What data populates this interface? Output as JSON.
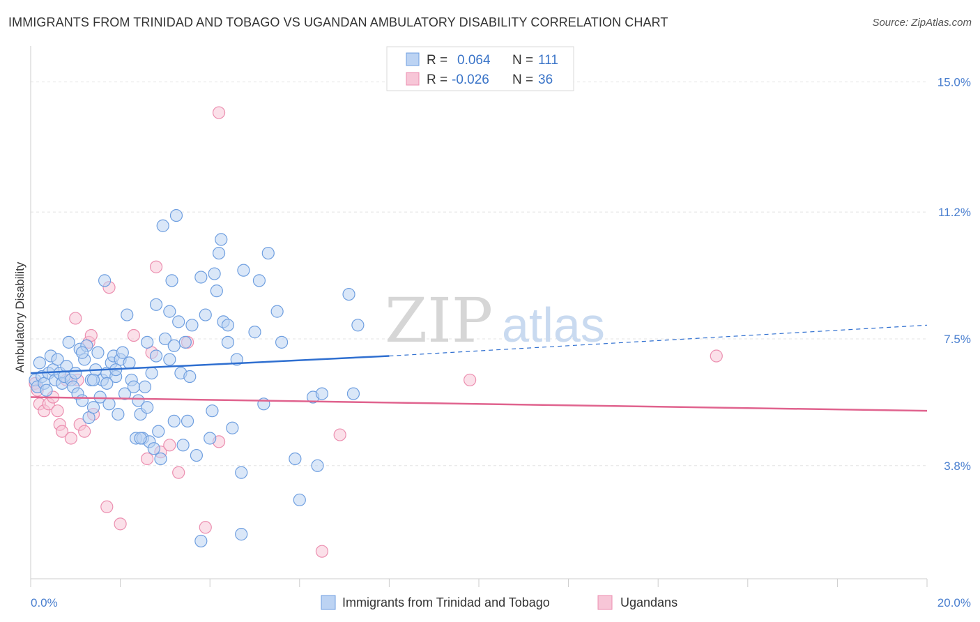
{
  "title": "IMMIGRANTS FROM TRINIDAD AND TOBAGO VS UGANDAN AMBULATORY DISABILITY CORRELATION CHART",
  "source": "Source: ZipAtlas.com",
  "watermark": {
    "zip": "ZIP",
    "atlas": "atlas"
  },
  "legend": {
    "r_label": "R =",
    "n_label": "N =",
    "rows": [
      {
        "r": "0.064",
        "n": "111"
      },
      {
        "r": "-0.026",
        "n": "36"
      }
    ]
  },
  "chart_data": {
    "type": "scatter",
    "title": "IMMIGRANTS FROM TRINIDAD AND TOBAGO VS UGANDAN AMBULATORY DISABILITY CORRELATION CHART",
    "xlabel": "",
    "ylabel": "Ambulatory Disability",
    "xlim": [
      0,
      20
    ],
    "ylim": [
      0.5,
      15.8
    ],
    "x_tick_labels": [
      "0.0%",
      "20.0%"
    ],
    "y_ticks": [
      3.8,
      7.5,
      11.2,
      15.0
    ],
    "y_tick_labels": [
      "3.8%",
      "7.5%",
      "11.2%",
      "15.0%"
    ],
    "grid": true,
    "legend_position": "top-center",
    "series": [
      {
        "name": "Immigrants from Trinidad and Tobago",
        "color": "#6f9fe0",
        "fill": "#bcd3f3",
        "trend": {
          "x0": 0,
          "y0": 6.5,
          "x1": 8.0,
          "y1": 7.0,
          "dash_x1": 20,
          "dash_y1": 7.9,
          "color": "#2f6fd0"
        },
        "points": [
          [
            0.1,
            6.3
          ],
          [
            0.15,
            6.1
          ],
          [
            0.2,
            6.8
          ],
          [
            0.25,
            6.4
          ],
          [
            0.3,
            6.2
          ],
          [
            0.35,
            6.0
          ],
          [
            0.4,
            6.5
          ],
          [
            0.45,
            7.0
          ],
          [
            0.5,
            6.6
          ],
          [
            0.55,
            6.3
          ],
          [
            0.6,
            6.9
          ],
          [
            0.65,
            6.5
          ],
          [
            0.7,
            6.2
          ],
          [
            0.75,
            6.4
          ],
          [
            0.8,
            6.7
          ],
          [
            0.85,
            7.4
          ],
          [
            0.9,
            6.3
          ],
          [
            0.95,
            6.1
          ],
          [
            1.0,
            6.5
          ],
          [
            1.05,
            5.9
          ],
          [
            1.1,
            7.2
          ],
          [
            1.15,
            5.7
          ],
          [
            1.2,
            6.9
          ],
          [
            1.25,
            7.3
          ],
          [
            1.3,
            5.2
          ],
          [
            1.35,
            6.3
          ],
          [
            1.4,
            5.5
          ],
          [
            1.45,
            6.6
          ],
          [
            1.5,
            7.1
          ],
          [
            1.55,
            5.8
          ],
          [
            1.6,
            6.3
          ],
          [
            1.65,
            9.2
          ],
          [
            1.7,
            6.5
          ],
          [
            1.75,
            5.6
          ],
          [
            1.8,
            6.8
          ],
          [
            1.85,
            7.0
          ],
          [
            1.9,
            6.4
          ],
          [
            1.95,
            5.3
          ],
          [
            2.0,
            6.9
          ],
          [
            2.05,
            7.1
          ],
          [
            2.1,
            5.9
          ],
          [
            2.15,
            8.2
          ],
          [
            2.2,
            6.8
          ],
          [
            2.25,
            6.3
          ],
          [
            2.3,
            6.1
          ],
          [
            2.35,
            4.6
          ],
          [
            2.4,
            5.7
          ],
          [
            2.45,
            5.3
          ],
          [
            2.5,
            4.6
          ],
          [
            2.55,
            6.1
          ],
          [
            2.6,
            7.4
          ],
          [
            2.65,
            4.5
          ],
          [
            2.7,
            6.5
          ],
          [
            2.75,
            4.3
          ],
          [
            2.8,
            8.5
          ],
          [
            2.85,
            4.8
          ],
          [
            2.9,
            4.0
          ],
          [
            3.0,
            7.5
          ],
          [
            3.1,
            6.9
          ],
          [
            3.15,
            9.2
          ],
          [
            3.2,
            7.3
          ],
          [
            3.3,
            8.0
          ],
          [
            3.35,
            6.5
          ],
          [
            3.4,
            4.4
          ],
          [
            3.45,
            7.4
          ],
          [
            3.5,
            5.1
          ],
          [
            3.55,
            6.4
          ],
          [
            3.6,
            7.9
          ],
          [
            3.7,
            4.1
          ],
          [
            3.8,
            9.3
          ],
          [
            3.9,
            8.2
          ],
          [
            4.0,
            4.6
          ],
          [
            4.05,
            5.4
          ],
          [
            4.1,
            9.4
          ],
          [
            4.15,
            8.9
          ],
          [
            4.2,
            10.0
          ],
          [
            4.25,
            10.4
          ],
          [
            4.3,
            8.0
          ],
          [
            4.4,
            7.9
          ],
          [
            4.5,
            4.9
          ],
          [
            4.6,
            6.9
          ],
          [
            4.7,
            3.6
          ],
          [
            4.75,
            9.5
          ],
          [
            5.0,
            7.7
          ],
          [
            5.1,
            9.2
          ],
          [
            5.2,
            5.6
          ],
          [
            5.3,
            10.0
          ],
          [
            5.5,
            8.3
          ],
          [
            5.6,
            7.4
          ],
          [
            5.9,
            4.0
          ],
          [
            6.0,
            2.8
          ],
          [
            6.3,
            5.8
          ],
          [
            6.4,
            3.8
          ],
          [
            6.5,
            5.9
          ],
          [
            7.1,
            8.8
          ],
          [
            7.2,
            5.9
          ],
          [
            7.3,
            7.9
          ],
          [
            1.15,
            7.1
          ],
          [
            2.95,
            10.8
          ],
          [
            3.25,
            11.1
          ],
          [
            3.1,
            8.3
          ],
          [
            2.8,
            7.0
          ],
          [
            2.6,
            5.5
          ],
          [
            2.45,
            4.6
          ],
          [
            1.7,
            6.2
          ],
          [
            1.4,
            6.3
          ],
          [
            1.9,
            6.6
          ],
          [
            3.2,
            5.1
          ],
          [
            4.7,
            1.8
          ],
          [
            3.8,
            1.6
          ],
          [
            4.4,
            7.4
          ]
        ]
      },
      {
        "name": "Ugandans",
        "color": "#ec8fb0",
        "fill": "#f7c6d7",
        "trend": {
          "x0": 0,
          "y0": 5.8,
          "x1": 20,
          "y1": 5.4,
          "color": "#e0638e"
        },
        "points": [
          [
            0.1,
            6.2
          ],
          [
            0.2,
            5.6
          ],
          [
            0.3,
            5.4
          ],
          [
            0.4,
            5.6
          ],
          [
            0.5,
            5.8
          ],
          [
            0.6,
            5.4
          ],
          [
            0.65,
            5.0
          ],
          [
            0.7,
            4.8
          ],
          [
            0.8,
            6.3
          ],
          [
            0.9,
            4.6
          ],
          [
            1.0,
            8.1
          ],
          [
            1.05,
            6.3
          ],
          [
            1.1,
            5.0
          ],
          [
            1.2,
            4.8
          ],
          [
            1.3,
            7.4
          ],
          [
            1.35,
            7.6
          ],
          [
            1.4,
            5.3
          ],
          [
            1.7,
            2.6
          ],
          [
            1.75,
            9.0
          ],
          [
            2.0,
            2.1
          ],
          [
            2.3,
            7.6
          ],
          [
            2.6,
            4.0
          ],
          [
            2.7,
            7.1
          ],
          [
            2.8,
            9.6
          ],
          [
            2.9,
            4.2
          ],
          [
            3.1,
            4.4
          ],
          [
            3.3,
            3.6
          ],
          [
            3.5,
            7.4
          ],
          [
            3.9,
            2.0
          ],
          [
            4.2,
            4.5
          ],
          [
            4.2,
            14.1
          ],
          [
            6.5,
            1.3
          ],
          [
            6.9,
            4.7
          ],
          [
            9.8,
            6.3
          ],
          [
            15.3,
            7.0
          ],
          [
            0.15,
            6.0
          ]
        ]
      }
    ]
  },
  "bottom_legend": [
    {
      "label": "Immigrants from Trinidad and Tobago"
    },
    {
      "label": "Ugandans"
    }
  ]
}
